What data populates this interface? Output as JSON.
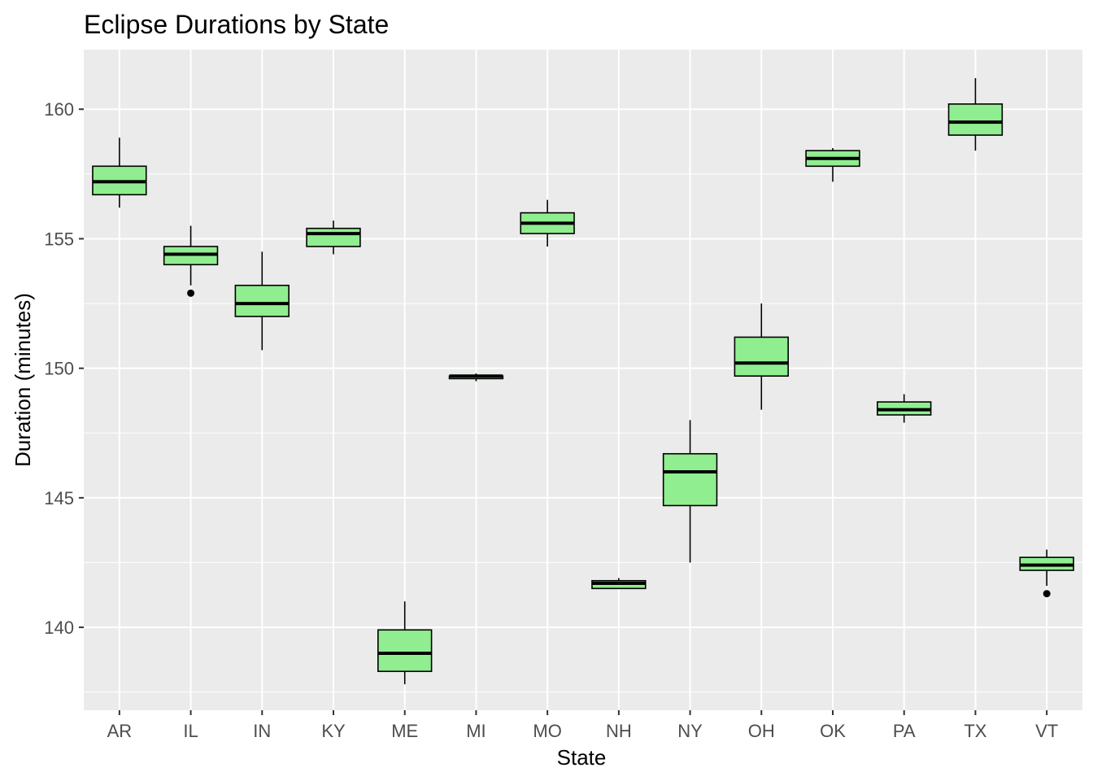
{
  "chart_data": {
    "type": "boxplot",
    "title": "Eclipse Durations by State",
    "xlabel": "State",
    "ylabel": "Duration (minutes)",
    "ylim": [
      136.8,
      162.3
    ],
    "yticks": [
      140,
      145,
      150,
      155,
      160
    ],
    "grid": true,
    "fill_color": "#90EE90",
    "panel_color": "#EBEBEB",
    "categories": [
      "AR",
      "IL",
      "IN",
      "KY",
      "ME",
      "MI",
      "MO",
      "NH",
      "NY",
      "OH",
      "OK",
      "PA",
      "TX",
      "VT"
    ],
    "boxes": [
      {
        "state": "AR",
        "min": 156.2,
        "q1": 156.7,
        "median": 157.2,
        "q3": 157.8,
        "max": 158.9,
        "outliers": []
      },
      {
        "state": "IL",
        "min": 153.2,
        "q1": 154.0,
        "median": 154.4,
        "q3": 154.7,
        "max": 155.5,
        "outliers": [
          152.9
        ]
      },
      {
        "state": "IN",
        "min": 150.7,
        "q1": 152.0,
        "median": 152.5,
        "q3": 153.2,
        "max": 154.5,
        "outliers": []
      },
      {
        "state": "KY",
        "min": 154.4,
        "q1": 154.7,
        "median": 155.2,
        "q3": 155.4,
        "max": 155.7,
        "outliers": []
      },
      {
        "state": "ME",
        "min": 137.8,
        "q1": 138.3,
        "median": 139.0,
        "q3": 139.9,
        "max": 141.0,
        "outliers": []
      },
      {
        "state": "MI",
        "min": 149.5,
        "q1": 149.6,
        "median": 149.7,
        "q3": 149.7,
        "max": 149.8,
        "outliers": []
      },
      {
        "state": "MO",
        "min": 154.7,
        "q1": 155.2,
        "median": 155.6,
        "q3": 156.0,
        "max": 156.5,
        "outliers": []
      },
      {
        "state": "NH",
        "min": 141.5,
        "q1": 141.5,
        "median": 141.7,
        "q3": 141.8,
        "max": 141.9,
        "outliers": []
      },
      {
        "state": "NY",
        "min": 142.5,
        "q1": 144.7,
        "median": 146.0,
        "q3": 146.7,
        "max": 148.0,
        "outliers": []
      },
      {
        "state": "OH",
        "min": 148.4,
        "q1": 149.7,
        "median": 150.2,
        "q3": 151.2,
        "max": 152.5,
        "outliers": []
      },
      {
        "state": "OK",
        "min": 157.2,
        "q1": 157.8,
        "median": 158.1,
        "q3": 158.4,
        "max": 158.5,
        "outliers": []
      },
      {
        "state": "PA",
        "min": 147.9,
        "q1": 148.2,
        "median": 148.4,
        "q3": 148.7,
        "max": 149.0,
        "outliers": []
      },
      {
        "state": "TX",
        "min": 158.4,
        "q1": 159.0,
        "median": 159.5,
        "q3": 160.2,
        "max": 161.2,
        "outliers": []
      },
      {
        "state": "VT",
        "min": 141.6,
        "q1": 142.2,
        "median": 142.4,
        "q3": 142.7,
        "max": 143.0,
        "outliers": [
          141.3
        ]
      }
    ]
  }
}
